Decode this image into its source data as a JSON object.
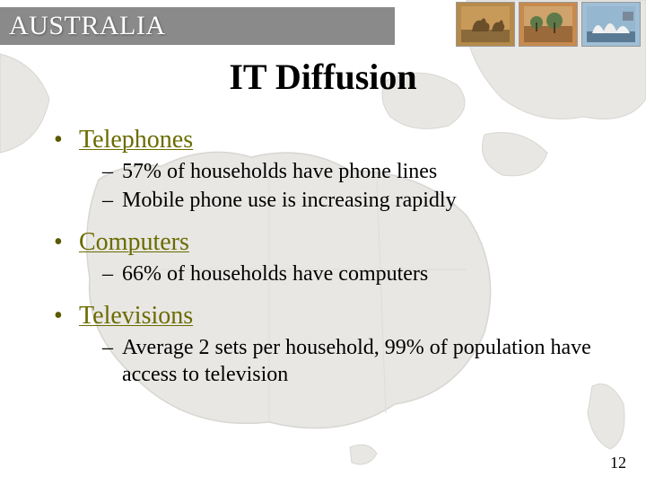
{
  "header": {
    "country": "AUSTRALIA",
    "bar_bg": "#8a8a8a",
    "text_color": "#ffffff"
  },
  "slide_title": "IT Diffusion",
  "bullet_color": "#6b6b00",
  "bullet_marker_color": "#5a5a00",
  "body_text_color": "#000000",
  "background_color": "#ffffff",
  "map_fill": "#d6d4cf",
  "map_stroke": "#b7b5af",
  "sections": [
    {
      "heading": "Telephones",
      "items": [
        "57% of households have phone lines",
        "Mobile phone use is increasing rapidly"
      ]
    },
    {
      "heading": "Computers",
      "items": [
        "66% of households have computers"
      ]
    },
    {
      "heading": "Televisions",
      "items": [
        "Average 2 sets per household, 99% of population have access to television"
      ]
    }
  ],
  "page_number": "12",
  "thumbnails": [
    {
      "name": "kangaroo-thumb",
      "bg": "#b58a4a",
      "accent": "#6b4e2a"
    },
    {
      "name": "landscape-thumb",
      "bg": "#c78a4f",
      "accent": "#5f7a4a"
    },
    {
      "name": "opera-house-thumb",
      "bg": "#9fbfd6",
      "accent": "#eeeeee"
    }
  ]
}
